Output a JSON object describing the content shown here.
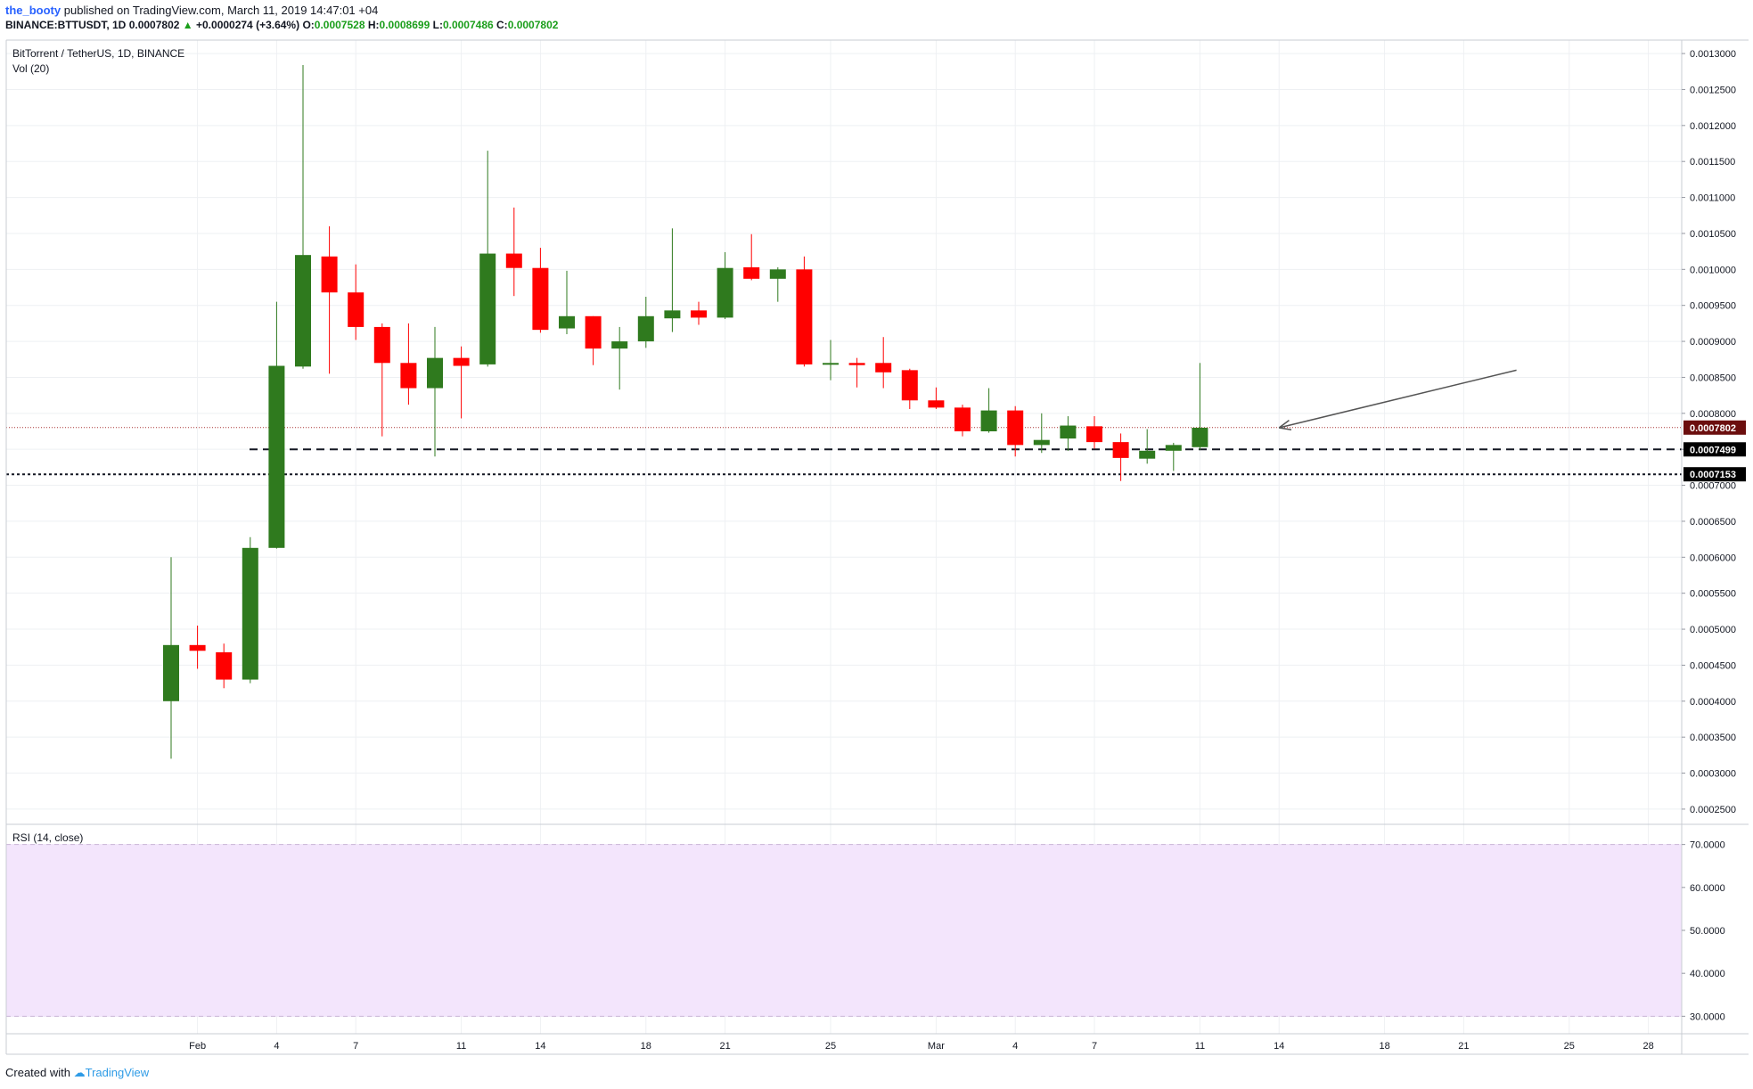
{
  "header": {
    "author": "the_booty",
    "published": "published on TradingView.com, March 11, 2019 14:47:01 +04",
    "symbol": "BINANCE:BTTUSDT, 1D",
    "last": "0.0007802",
    "change": "+0.0000274 (+3.64%)",
    "o_label": "O:",
    "o": "0.0007528",
    "h_label": "H:",
    "h": "0.0008699",
    "l_label": "L:",
    "l": "0.0007486",
    "c_label": "C:",
    "c": "0.0007802"
  },
  "legend": {
    "title": "BitTorrent / TetherUS, 1D, BINANCE",
    "vol": "Vol (20)",
    "rsi": "RSI (14, close)"
  },
  "footer": {
    "created": "Created with",
    "brand": "TradingView"
  },
  "colors": {
    "up": "#2f7a1e",
    "down": "#ff0000",
    "rsi_band": "#f3e5fc",
    "price_tag": "#6b0e0e"
  },
  "chart_data": {
    "type": "candlestick",
    "price_axis": {
      "ticks": [
        "0.0013000",
        "0.0012500",
        "0.0012000",
        "0.0011500",
        "0.0011000",
        "0.0010500",
        "0.0010000",
        "0.0009500",
        "0.0009000",
        "0.0008500",
        "0.0008000",
        "0.0007500",
        "0.0007000",
        "0.0006500",
        "0.0006000",
        "0.0005500",
        "0.0005000",
        "0.0004500",
        "0.0004000",
        "0.0003500",
        "0.0003000",
        "0.0002500"
      ],
      "range": [
        0.00024,
        0.00131
      ]
    },
    "rsi_axis": {
      "ticks": [
        "70.0000",
        "60.0000",
        "50.0000",
        "40.0000",
        "30.0000"
      ],
      "range": [
        28,
        72
      ],
      "band": [
        30,
        70
      ]
    },
    "time_axis": {
      "labels": [
        "Feb",
        "4",
        "7",
        "11",
        "14",
        "18",
        "21",
        "25",
        "Mar",
        "4",
        "7",
        "11",
        "14",
        "18",
        "21",
        "25",
        "28"
      ]
    },
    "candles": [
      {
        "date": "2019-01-31",
        "o": 0.0004,
        "h": 0.0006,
        "l": 0.00032,
        "c": 0.000478
      },
      {
        "date": "2019-02-01",
        "o": 0.000478,
        "h": 0.000505,
        "l": 0.000445,
        "c": 0.00047
      },
      {
        "date": "2019-02-02",
        "o": 0.000468,
        "h": 0.00048,
        "l": 0.000418,
        "c": 0.00043
      },
      {
        "date": "2019-02-03",
        "o": 0.00043,
        "h": 0.000628,
        "l": 0.000425,
        "c": 0.000613
      },
      {
        "date": "2019-02-04",
        "o": 0.000613,
        "h": 0.000955,
        "l": 0.000612,
        "c": 0.000866
      },
      {
        "date": "2019-02-05",
        "o": 0.000865,
        "h": 0.001284,
        "l": 0.000862,
        "c": 0.00102
      },
      {
        "date": "2019-02-06",
        "o": 0.001018,
        "h": 0.00106,
        "l": 0.000855,
        "c": 0.000968
      },
      {
        "date": "2019-02-07",
        "o": 0.000968,
        "h": 0.001007,
        "l": 0.000902,
        "c": 0.00092
      },
      {
        "date": "2019-02-08",
        "o": 0.00092,
        "h": 0.000925,
        "l": 0.000768,
        "c": 0.00087
      },
      {
        "date": "2019-02-09",
        "o": 0.00087,
        "h": 0.000925,
        "l": 0.000812,
        "c": 0.000835
      },
      {
        "date": "2019-02-10",
        "o": 0.000835,
        "h": 0.00092,
        "l": 0.00074,
        "c": 0.000877
      },
      {
        "date": "2019-02-11",
        "o": 0.000877,
        "h": 0.000893,
        "l": 0.000793,
        "c": 0.000866
      },
      {
        "date": "2019-02-12",
        "o": 0.000868,
        "h": 0.001165,
        "l": 0.000865,
        "c": 0.001022
      },
      {
        "date": "2019-02-13",
        "o": 0.001022,
        "h": 0.001086,
        "l": 0.000963,
        "c": 0.001002
      },
      {
        "date": "2019-02-14",
        "o": 0.001002,
        "h": 0.00103,
        "l": 0.000912,
        "c": 0.000916
      },
      {
        "date": "2019-02-15",
        "o": 0.000918,
        "h": 0.000998,
        "l": 0.00091,
        "c": 0.000935
      },
      {
        "date": "2019-02-16",
        "o": 0.000935,
        "h": 0.000935,
        "l": 0.000867,
        "c": 0.00089
      },
      {
        "date": "2019-02-17",
        "o": 0.00089,
        "h": 0.00092,
        "l": 0.000833,
        "c": 0.0009
      },
      {
        "date": "2019-02-18",
        "o": 0.0009,
        "h": 0.000962,
        "l": 0.000891,
        "c": 0.000935
      },
      {
        "date": "2019-02-19",
        "o": 0.000932,
        "h": 0.001057,
        "l": 0.000913,
        "c": 0.000943
      },
      {
        "date": "2019-02-20",
        "o": 0.000943,
        "h": 0.000955,
        "l": 0.000923,
        "c": 0.000933
      },
      {
        "date": "2019-02-21",
        "o": 0.000933,
        "h": 0.001024,
        "l": 0.000931,
        "c": 0.001002
      },
      {
        "date": "2019-02-22",
        "o": 0.001003,
        "h": 0.001049,
        "l": 0.000985,
        "c": 0.000987
      },
      {
        "date": "2019-02-23",
        "o": 0.000987,
        "h": 0.001003,
        "l": 0.000955,
        "c": 0.001
      },
      {
        "date": "2019-02-24",
        "o": 0.001,
        "h": 0.001018,
        "l": 0.000865,
        "c": 0.000868
      },
      {
        "date": "2019-02-25",
        "o": 0.000868,
        "h": 0.000902,
        "l": 0.000846,
        "c": 0.00087
      },
      {
        "date": "2019-02-26",
        "o": 0.00087,
        "h": 0.000877,
        "l": 0.000836,
        "c": 0.000867
      },
      {
        "date": "2019-02-27",
        "o": 0.00087,
        "h": 0.000906,
        "l": 0.000835,
        "c": 0.000857
      },
      {
        "date": "2019-02-28",
        "o": 0.00086,
        "h": 0.000862,
        "l": 0.000806,
        "c": 0.000818
      },
      {
        "date": "2019-03-01",
        "o": 0.000818,
        "h": 0.000836,
        "l": 0.000806,
        "c": 0.000808
      },
      {
        "date": "2019-03-02",
        "o": 0.000808,
        "h": 0.000812,
        "l": 0.000768,
        "c": 0.000775
      },
      {
        "date": "2019-03-03",
        "o": 0.000775,
        "h": 0.000835,
        "l": 0.000773,
        "c": 0.000804
      },
      {
        "date": "2019-03-04",
        "o": 0.000804,
        "h": 0.00081,
        "l": 0.00074,
        "c": 0.000756
      },
      {
        "date": "2019-03-05",
        "o": 0.000756,
        "h": 0.0008,
        "l": 0.000745,
        "c": 0.000763
      },
      {
        "date": "2019-03-06",
        "o": 0.000765,
        "h": 0.000796,
        "l": 0.000748,
        "c": 0.000783
      },
      {
        "date": "2019-03-07",
        "o": 0.000782,
        "h": 0.000796,
        "l": 0.000751,
        "c": 0.00076
      },
      {
        "date": "2019-03-08",
        "o": 0.00076,
        "h": 0.000772,
        "l": 0.000706,
        "c": 0.000738
      },
      {
        "date": "2019-03-09",
        "o": 0.000737,
        "h": 0.000778,
        "l": 0.00073,
        "c": 0.000748
      },
      {
        "date": "2019-03-10",
        "o": 0.000748,
        "h": 0.000759,
        "l": 0.00072,
        "c": 0.000756
      },
      {
        "date": "2019-03-11",
        "o": 0.000753,
        "h": 0.00087,
        "l": 0.000749,
        "c": 0.00078
      }
    ],
    "price_tags": [
      {
        "label": "0.0007802",
        "value": 0.0007802,
        "style": "dotted-red"
      },
      {
        "label": "0.0007499",
        "value": 0.0007499,
        "style": "dashed"
      },
      {
        "label": "0.0007153",
        "value": 0.0007153,
        "style": "dotted"
      }
    ],
    "arrow": {
      "from": {
        "date": "2019-03-23",
        "value": 0.00086
      },
      "to": {
        "date": "2019-03-14",
        "value": 0.00078
      }
    },
    "grid": true
  }
}
